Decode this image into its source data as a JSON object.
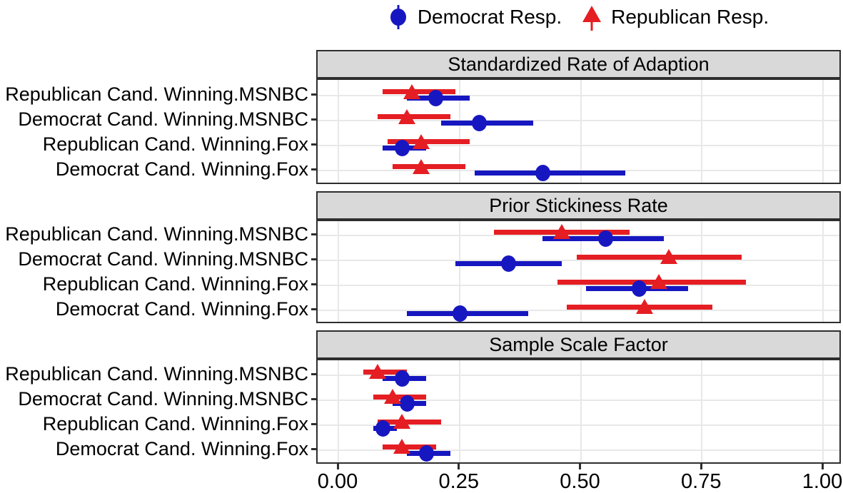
{
  "colors": {
    "democrat": "#1717C1",
    "republican": "#E41E23",
    "strip_bg": "#D9D9D9",
    "grid": "#E8E8E8",
    "frame": "#2E2E2E"
  },
  "legend": {
    "items": [
      {
        "label": "Democrat Resp.",
        "marker": "circle-pointrange",
        "color": "#1717C1"
      },
      {
        "label": "Republican Resp.",
        "marker": "triangle-pointrange",
        "color": "#E41E23"
      }
    ]
  },
  "chart_data": {
    "type": "scatter",
    "subtype": "pointrange-forest",
    "orientation": "horizontal",
    "xlim": [
      0,
      1
    ],
    "x_tick_values": [
      0,
      0.25,
      0.5,
      0.75,
      1
    ],
    "x_ticks": [
      "0.00",
      "0.25",
      "0.50",
      "0.75",
      "1.00"
    ],
    "grid": "on",
    "legend_position": "top",
    "series_names": [
      "Democrat Resp.",
      "Republican Resp."
    ],
    "categories": [
      "Republican Cand. Winning.MSNBC",
      "Democrat Cand. Winning.MSNBC",
      "Republican Cand. Winning.Fox",
      "Democrat Cand. Winning.Fox"
    ],
    "panels": [
      {
        "title": "Standardized Rate of Adaption",
        "rows": [
          {
            "category": "Republican Cand. Winning.MSNBC",
            "democrat": {
              "value": 0.2,
              "lo": 0.14,
              "hi": 0.27
            },
            "republican": {
              "value": 0.15,
              "lo": 0.09,
              "hi": 0.24
            }
          },
          {
            "category": "Democrat Cand. Winning.MSNBC",
            "democrat": {
              "value": 0.29,
              "lo": 0.21,
              "hi": 0.4
            },
            "republican": {
              "value": 0.14,
              "lo": 0.08,
              "hi": 0.23
            }
          },
          {
            "category": "Republican Cand. Winning.Fox",
            "democrat": {
              "value": 0.13,
              "lo": 0.09,
              "hi": 0.18
            },
            "republican": {
              "value": 0.17,
              "lo": 0.1,
              "hi": 0.27
            }
          },
          {
            "category": "Democrat Cand. Winning.Fox",
            "democrat": {
              "value": 0.42,
              "lo": 0.28,
              "hi": 0.59
            },
            "republican": {
              "value": 0.17,
              "lo": 0.11,
              "hi": 0.26
            }
          }
        ]
      },
      {
        "title": "Prior Stickiness Rate",
        "rows": [
          {
            "category": "Republican Cand. Winning.MSNBC",
            "democrat": {
              "value": 0.55,
              "lo": 0.42,
              "hi": 0.67
            },
            "republican": {
              "value": 0.46,
              "lo": 0.32,
              "hi": 0.6
            }
          },
          {
            "category": "Democrat Cand. Winning.MSNBC",
            "democrat": {
              "value": 0.35,
              "lo": 0.24,
              "hi": 0.46
            },
            "republican": {
              "value": 0.68,
              "lo": 0.49,
              "hi": 0.83
            }
          },
          {
            "category": "Republican Cand. Winning.Fox",
            "democrat": {
              "value": 0.62,
              "lo": 0.51,
              "hi": 0.72
            },
            "republican": {
              "value": 0.66,
              "lo": 0.45,
              "hi": 0.84
            }
          },
          {
            "category": "Democrat Cand. Winning.Fox",
            "democrat": {
              "value": 0.25,
              "lo": 0.14,
              "hi": 0.39
            },
            "republican": {
              "value": 0.63,
              "lo": 0.47,
              "hi": 0.77
            }
          }
        ]
      },
      {
        "title": "Sample Scale Factor",
        "rows": [
          {
            "category": "Republican Cand. Winning.MSNBC",
            "democrat": {
              "value": 0.13,
              "lo": 0.09,
              "hi": 0.18
            },
            "republican": {
              "value": 0.08,
              "lo": 0.05,
              "hi": 0.14
            }
          },
          {
            "category": "Democrat Cand. Winning.MSNBC",
            "democrat": {
              "value": 0.14,
              "lo": 0.11,
              "hi": 0.18
            },
            "republican": {
              "value": 0.11,
              "lo": 0.07,
              "hi": 0.18
            }
          },
          {
            "category": "Republican Cand. Winning.Fox",
            "democrat": {
              "value": 0.09,
              "lo": 0.07,
              "hi": 0.12
            },
            "republican": {
              "value": 0.13,
              "lo": 0.08,
              "hi": 0.21
            }
          },
          {
            "category": "Democrat Cand. Winning.Fox",
            "democrat": {
              "value": 0.18,
              "lo": 0.14,
              "hi": 0.23
            },
            "republican": {
              "value": 0.13,
              "lo": 0.09,
              "hi": 0.2
            }
          }
        ]
      }
    ]
  }
}
